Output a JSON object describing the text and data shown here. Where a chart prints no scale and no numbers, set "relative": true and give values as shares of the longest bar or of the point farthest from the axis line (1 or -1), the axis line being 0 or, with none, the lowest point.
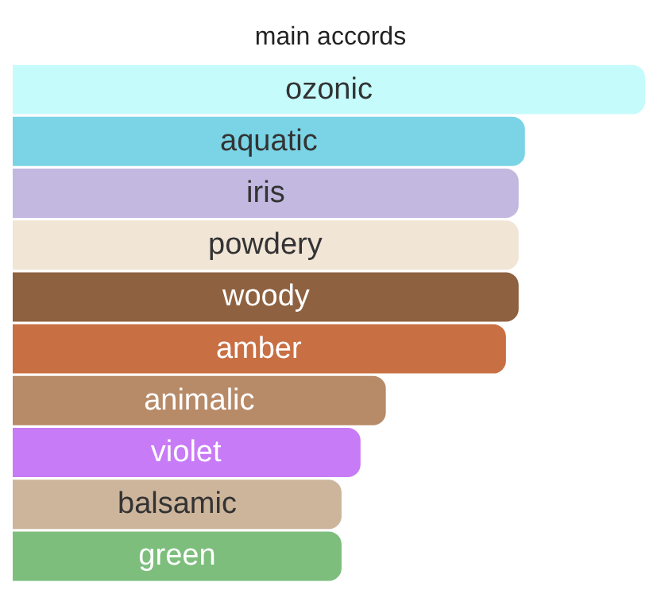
{
  "chart_data": {
    "type": "bar",
    "title": "main accords",
    "orientation": "horizontal",
    "relative": true,
    "tick_labels": false,
    "categories": [
      "ozonic",
      "aquatic",
      "iris",
      "powdery",
      "woody",
      "amber",
      "animalic",
      "violet",
      "balsamic",
      "green"
    ],
    "values": [
      1,
      0.81,
      0.8,
      0.8,
      0.8,
      0.78,
      0.59,
      0.55,
      0.52,
      0.52
    ],
    "colors": [
      "#c6fbfb",
      "#7ad4e6",
      "#c3b8e0",
      "#f1e5d6",
      "#8e6140",
      "#c86f43",
      "#b78a68",
      "#c87bf7",
      "#cdb59c",
      "#7dbe7d"
    ]
  }
}
